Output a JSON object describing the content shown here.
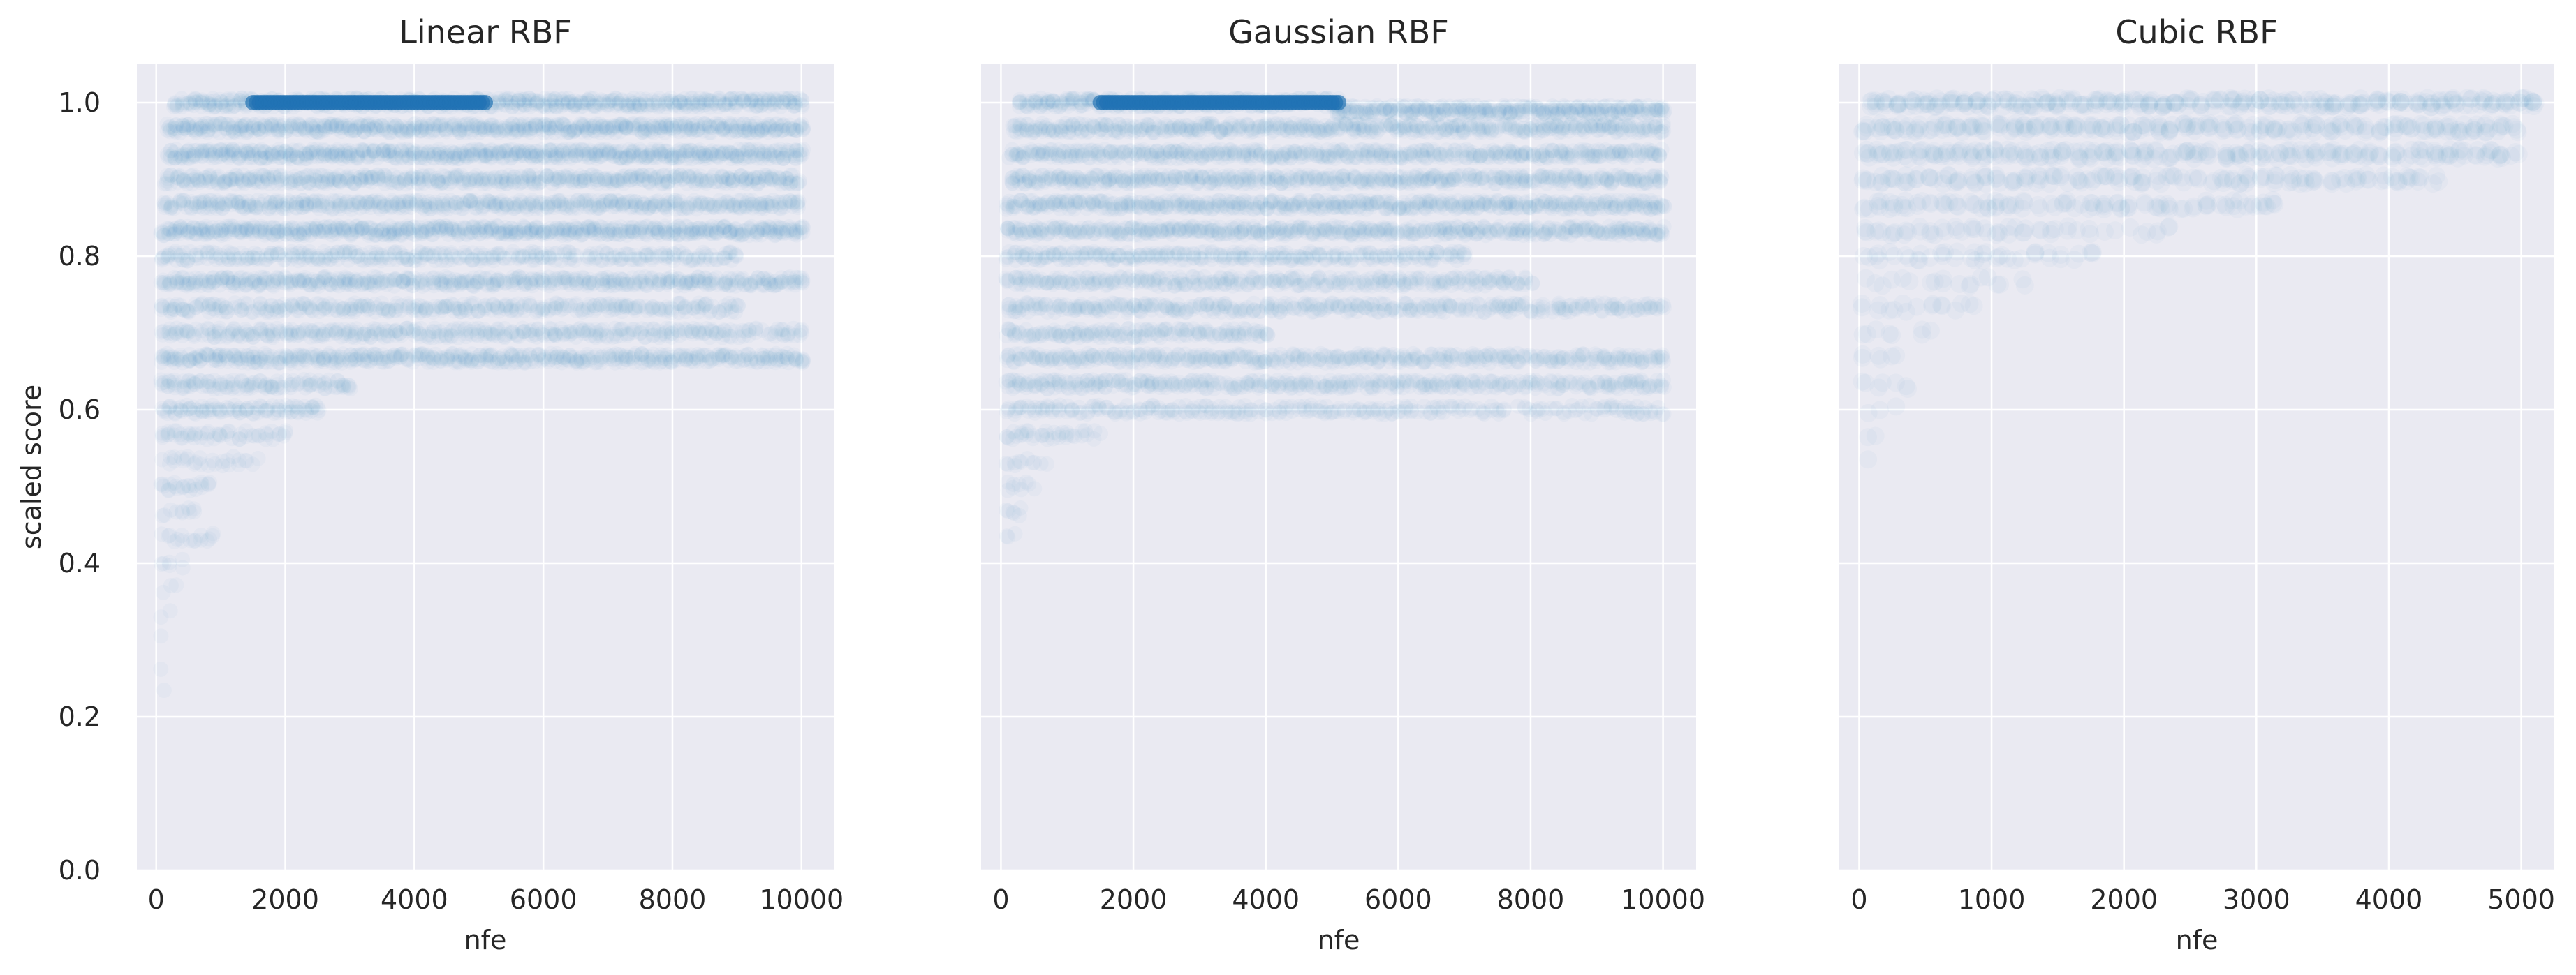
{
  "chart_data": [
    {
      "type": "scatter",
      "title": "Linear RBF",
      "xlabel": "nfe",
      "ylabel": "scaled score",
      "xlim": [
        -300,
        10500
      ],
      "ylim": [
        0,
        1.05
      ],
      "xticks": [
        0,
        2000,
        4000,
        6000,
        8000,
        10000
      ],
      "xtick_labels": [
        "0",
        "2000",
        "4000",
        "6000",
        "8000",
        "10000"
      ],
      "yticks": [
        0.0,
        0.2,
        0.4,
        0.6,
        0.8,
        1.0
      ],
      "ytick_labels": [
        "0.0",
        "0.2",
        "0.4",
        "0.6",
        "0.8",
        "1.0"
      ],
      "grid": true,
      "point_color": "#1f77b4",
      "point_alpha": 0.03,
      "x_step": 100,
      "bands": [
        {
          "y": 1.0,
          "x_start": 300,
          "x_end": 10000,
          "strength": 1.0
        },
        {
          "y": 0.967,
          "x_start": 200,
          "x_end": 10000,
          "strength": 1.0
        },
        {
          "y": 0.933,
          "x_start": 200,
          "x_end": 10000,
          "strength": 1.0
        },
        {
          "y": 0.9,
          "x_start": 150,
          "x_end": 10000,
          "strength": 0.9
        },
        {
          "y": 0.867,
          "x_start": 150,
          "x_end": 10000,
          "strength": 0.9
        },
        {
          "y": 0.833,
          "x_start": 100,
          "x_end": 10000,
          "strength": 1.0
        },
        {
          "y": 0.8,
          "x_start": 100,
          "x_end": 9000,
          "strength": 0.7
        },
        {
          "y": 0.767,
          "x_start": 100,
          "x_end": 10000,
          "strength": 0.8
        },
        {
          "y": 0.733,
          "x_start": 100,
          "x_end": 9000,
          "strength": 0.6
        },
        {
          "y": 0.7,
          "x_start": 100,
          "x_end": 10000,
          "strength": 0.7
        },
        {
          "y": 0.667,
          "x_start": 100,
          "x_end": 10000,
          "strength": 0.8
        },
        {
          "y": 0.633,
          "x_start": 100,
          "x_end": 3000,
          "strength": 0.6
        },
        {
          "y": 0.6,
          "x_start": 100,
          "x_end": 2500,
          "strength": 0.6
        },
        {
          "y": 0.567,
          "x_start": 100,
          "x_end": 2000,
          "strength": 0.5
        },
        {
          "y": 0.533,
          "x_start": 100,
          "x_end": 1600,
          "strength": 0.4
        },
        {
          "y": 0.5,
          "x_start": 100,
          "x_end": 800,
          "strength": 0.5
        },
        {
          "y": 0.467,
          "x_start": 100,
          "x_end": 600,
          "strength": 0.4
        },
        {
          "y": 0.433,
          "x_start": 100,
          "x_end": 900,
          "strength": 0.3
        },
        {
          "y": 0.4,
          "x_start": 100,
          "x_end": 400,
          "strength": 0.3
        },
        {
          "y": 0.367,
          "x_start": 100,
          "x_end": 300,
          "strength": 0.2
        },
        {
          "y": 0.333,
          "x_start": 100,
          "x_end": 200,
          "strength": 0.2
        },
        {
          "y": 0.3,
          "x_start": 100,
          "x_end": 150,
          "strength": 0.2
        },
        {
          "y": 0.267,
          "x_start": 100,
          "x_end": 120,
          "strength": 0.2
        },
        {
          "y": 0.233,
          "x_start": 100,
          "x_end": 110,
          "strength": 0.2
        }
      ],
      "highlight": {
        "y": 1.0,
        "x_start": 1500,
        "x_end": 5100
      }
    },
    {
      "type": "scatter",
      "title": "Gaussian RBF",
      "xlabel": "nfe",
      "ylabel": "",
      "xlim": [
        -300,
        10500
      ],
      "ylim": [
        0,
        1.05
      ],
      "xticks": [
        0,
        2000,
        4000,
        6000,
        8000,
        10000
      ],
      "xtick_labels": [
        "0",
        "2000",
        "4000",
        "6000",
        "8000",
        "10000"
      ],
      "yticks": [
        0.0,
        0.2,
        0.4,
        0.6,
        0.8,
        1.0
      ],
      "ytick_labels": [],
      "grid": true,
      "point_color": "#1f77b4",
      "point_alpha": 0.03,
      "x_step": 100,
      "bands": [
        {
          "y": 1.0,
          "x_start": 300,
          "x_end": 5100,
          "strength": 1.0
        },
        {
          "y": 0.99,
          "x_start": 5100,
          "x_end": 10000,
          "strength": 1.0
        },
        {
          "y": 0.967,
          "x_start": 200,
          "x_end": 10000,
          "strength": 0.9
        },
        {
          "y": 0.933,
          "x_start": 150,
          "x_end": 10000,
          "strength": 0.8
        },
        {
          "y": 0.9,
          "x_start": 150,
          "x_end": 10000,
          "strength": 0.8
        },
        {
          "y": 0.867,
          "x_start": 100,
          "x_end": 10000,
          "strength": 0.9
        },
        {
          "y": 0.833,
          "x_start": 100,
          "x_end": 10000,
          "strength": 0.8
        },
        {
          "y": 0.8,
          "x_start": 100,
          "x_end": 7000,
          "strength": 0.7
        },
        {
          "y": 0.767,
          "x_start": 100,
          "x_end": 8000,
          "strength": 0.6
        },
        {
          "y": 0.733,
          "x_start": 100,
          "x_end": 10000,
          "strength": 0.6
        },
        {
          "y": 0.7,
          "x_start": 100,
          "x_end": 4000,
          "strength": 0.6
        },
        {
          "y": 0.667,
          "x_start": 100,
          "x_end": 10000,
          "strength": 0.7
        },
        {
          "y": 0.633,
          "x_start": 100,
          "x_end": 10000,
          "strength": 0.6
        },
        {
          "y": 0.6,
          "x_start": 100,
          "x_end": 10000,
          "strength": 0.5
        },
        {
          "y": 0.567,
          "x_start": 100,
          "x_end": 1500,
          "strength": 0.5
        },
        {
          "y": 0.533,
          "x_start": 100,
          "x_end": 700,
          "strength": 0.4
        },
        {
          "y": 0.5,
          "x_start": 100,
          "x_end": 500,
          "strength": 0.4
        },
        {
          "y": 0.467,
          "x_start": 100,
          "x_end": 300,
          "strength": 0.3
        },
        {
          "y": 0.433,
          "x_start": 100,
          "x_end": 200,
          "strength": 0.3
        }
      ],
      "highlight": {
        "y": 1.0,
        "x_start": 1500,
        "x_end": 5100
      }
    },
    {
      "type": "scatter",
      "title": "Cubic RBF",
      "xlabel": "nfe",
      "ylabel": "",
      "xlim": [
        -150,
        5250
      ],
      "ylim": [
        0,
        1.05
      ],
      "xticks": [
        0,
        1000,
        2000,
        3000,
        4000,
        5000
      ],
      "xtick_labels": [
        "0",
        "1000",
        "2000",
        "3000",
        "4000",
        "5000"
      ],
      "yticks": [
        0.0,
        0.2,
        0.4,
        0.6,
        0.8,
        1.0
      ],
      "ytick_labels": [],
      "grid": true,
      "point_color": "#1f77b4",
      "point_alpha": 0.03,
      "x_step": 100,
      "bands": [
        {
          "y": 1.0,
          "x_start": 100,
          "x_end": 5100,
          "strength": 1.0
        },
        {
          "y": 0.967,
          "x_start": 50,
          "x_end": 5000,
          "strength": 0.9
        },
        {
          "y": 0.933,
          "x_start": 50,
          "x_end": 5000,
          "strength": 0.8
        },
        {
          "y": 0.9,
          "x_start": 50,
          "x_end": 4400,
          "strength": 0.7
        },
        {
          "y": 0.867,
          "x_start": 50,
          "x_end": 3200,
          "strength": 0.6
        },
        {
          "y": 0.833,
          "x_start": 50,
          "x_end": 2400,
          "strength": 0.5
        },
        {
          "y": 0.8,
          "x_start": 50,
          "x_end": 1800,
          "strength": 0.5
        },
        {
          "y": 0.767,
          "x_start": 50,
          "x_end": 1400,
          "strength": 0.4
        },
        {
          "y": 0.733,
          "x_start": 50,
          "x_end": 900,
          "strength": 0.4
        },
        {
          "y": 0.7,
          "x_start": 50,
          "x_end": 600,
          "strength": 0.3
        },
        {
          "y": 0.667,
          "x_start": 50,
          "x_end": 500,
          "strength": 0.3
        },
        {
          "y": 0.633,
          "x_start": 50,
          "x_end": 400,
          "strength": 0.3
        },
        {
          "y": 0.6,
          "x_start": 50,
          "x_end": 250,
          "strength": 0.2
        },
        {
          "y": 0.567,
          "x_start": 50,
          "x_end": 150,
          "strength": 0.2
        },
        {
          "y": 0.533,
          "x_start": 50,
          "x_end": 100,
          "strength": 0.2
        }
      ],
      "highlight": null
    }
  ]
}
